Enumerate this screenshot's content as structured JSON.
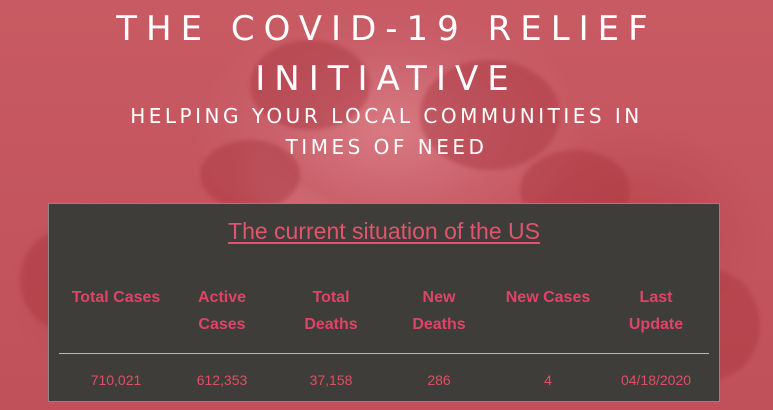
{
  "hero": {
    "title_line1": "THE COVID-19 RELIEF",
    "title_line2": "INITIATIVE",
    "subtitle_line1": "HELPING YOUR LOCAL COMMUNITIES IN",
    "subtitle_line2": "TIMES OF NEED"
  },
  "stats": {
    "heading": "The current situation of the US",
    "columns": [
      {
        "label_line1": "Total Cases",
        "label_line2": "",
        "value": "710,021"
      },
      {
        "label_line1": "Active",
        "label_line2": "Cases",
        "value": "612,353"
      },
      {
        "label_line1": "Total",
        "label_line2": "Deaths",
        "value": "37,158"
      },
      {
        "label_line1": "New",
        "label_line2": "Deaths",
        "value": "286"
      },
      {
        "label_line1": "New Cases",
        "label_line2": "",
        "value": "4"
      },
      {
        "label_line1": "Last",
        "label_line2": "Update",
        "value": "04/18/2020"
      }
    ]
  },
  "colors": {
    "accent": "#de4465",
    "panel_bg": "#3f3d3a",
    "hero_bg": "#c4535d"
  }
}
